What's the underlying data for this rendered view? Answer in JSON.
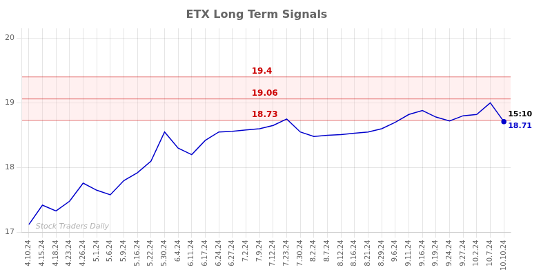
{
  "chart_data": {
    "type": "line",
    "title": "ETX Long Term Signals",
    "categories": [
      "4.10.24",
      "4.15.24",
      "4.18.24",
      "4.23.24",
      "4.26.24",
      "5.1.24",
      "5.6.24",
      "5.9.24",
      "5.16.24",
      "5.22.24",
      "5.30.24",
      "6.4.24",
      "6.11.24",
      "6.17.24",
      "6.24.24",
      "6.27.24",
      "7.2.24",
      "7.9.24",
      "7.12.24",
      "7.23.24",
      "7.30.24",
      "8.2.24",
      "8.7.24",
      "8.12.24",
      "8.16.24",
      "8.21.24",
      "8.29.24",
      "9.6.24",
      "9.11.24",
      "9.16.24",
      "9.19.24",
      "9.24.24",
      "9.27.24",
      "10.2.24",
      "10.7.24",
      "10.10.24"
    ],
    "values": [
      17.12,
      17.42,
      17.33,
      17.48,
      17.76,
      17.65,
      17.58,
      17.8,
      17.92,
      18.1,
      18.55,
      18.3,
      18.2,
      18.42,
      18.55,
      18.56,
      18.58,
      18.6,
      18.65,
      18.75,
      18.55,
      18.48,
      18.5,
      18.51,
      18.53,
      18.55,
      18.6,
      18.7,
      18.82,
      18.88,
      18.78,
      18.72,
      18.8,
      18.82,
      19.0,
      18.71
    ],
    "color": "#0000cc",
    "ylim": [
      17.0,
      20.15
    ],
    "yticks": [
      17,
      18,
      19,
      20
    ],
    "grid": true,
    "annotations": [
      {
        "kind": "band",
        "from": 18.73,
        "to": 19.4,
        "color": "#ffcccc"
      },
      {
        "kind": "hline",
        "y": 19.4,
        "text": "19.4",
        "color": "#cc0000"
      },
      {
        "kind": "hline",
        "y": 19.06,
        "text": "19.06",
        "color": "#cc0000"
      },
      {
        "kind": "hline",
        "y": 18.73,
        "text": "18.73",
        "color": "#cc0000"
      },
      {
        "kind": "end_label",
        "text": "15:10",
        "color": "#000000"
      },
      {
        "kind": "end_label",
        "text": "18.71",
        "color": "#0000cc"
      },
      {
        "kind": "watermark",
        "text": "Stock Traders Daily",
        "color": "#aaaaaa"
      }
    ]
  }
}
